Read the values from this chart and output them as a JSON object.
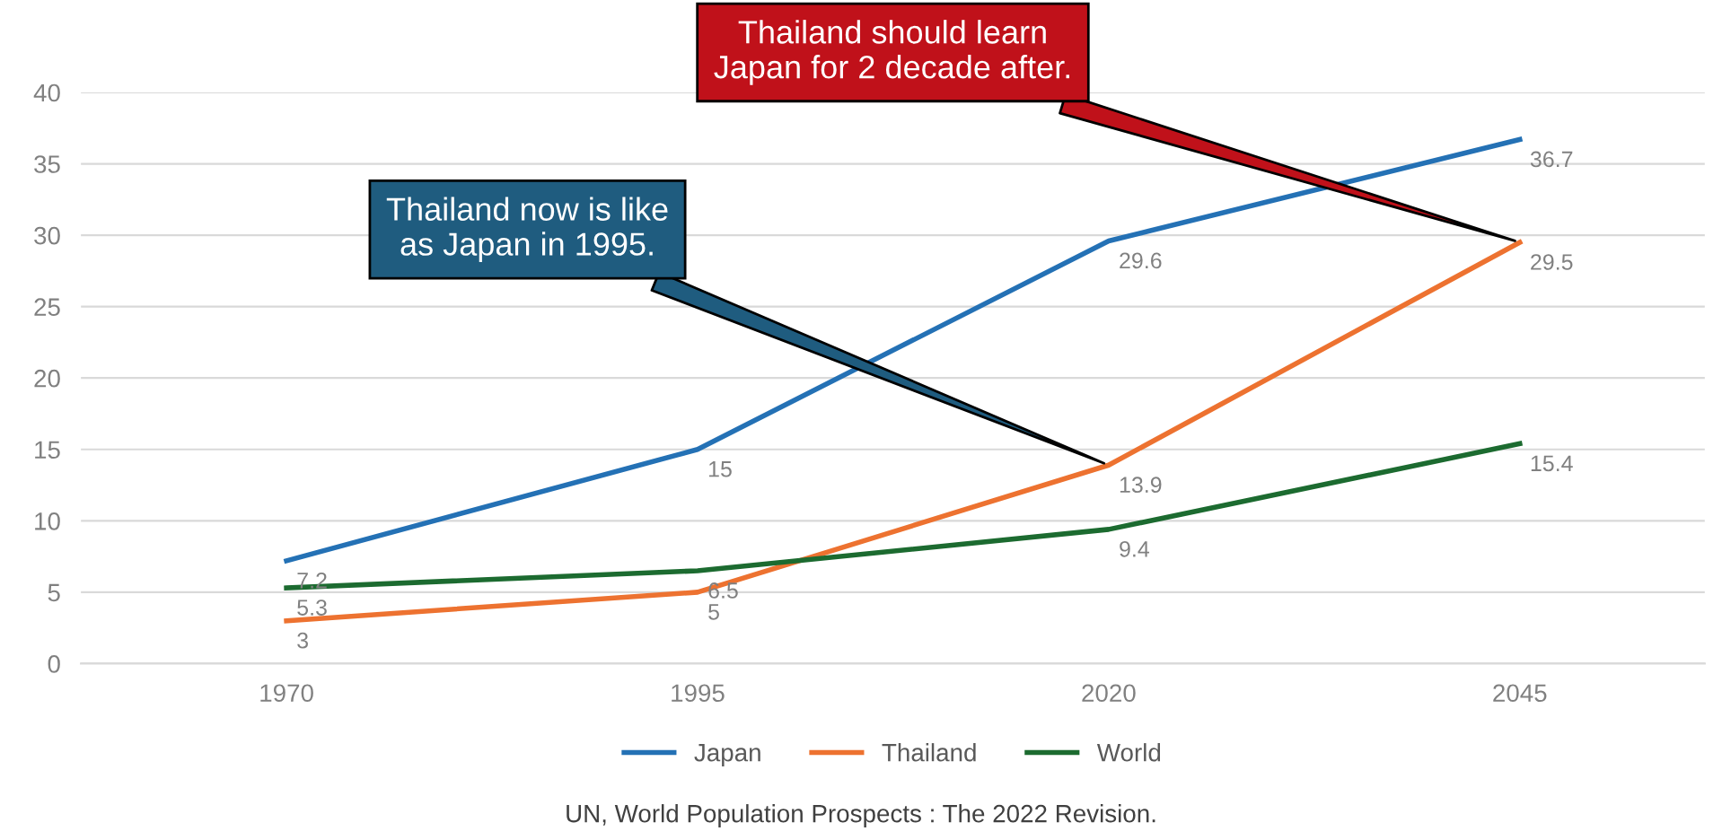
{
  "chart_data": {
    "type": "line",
    "categories": [
      "1970",
      "1995",
      "2020",
      "2045"
    ],
    "series": [
      {
        "name": "Japan",
        "color": "#2471b5",
        "values": [
          7.2,
          15,
          29.6,
          36.7
        ]
      },
      {
        "name": "Thailand",
        "color": "#ed7230",
        "values": [
          3,
          5,
          13.9,
          29.5
        ]
      },
      {
        "name": "World",
        "color": "#1c6b30",
        "values": [
          5.3,
          6.5,
          9.4,
          15.4
        ]
      }
    ],
    "ylim": [
      0,
      40
    ],
    "yticks": [
      0,
      5,
      10,
      15,
      20,
      25,
      30,
      35,
      40
    ],
    "grid": "y",
    "legend": "bottom",
    "data_labels": true,
    "marker": "none",
    "line_style": "solid",
    "annotations": [
      {
        "text": "Thailand now is like\nas Japan in 1995.",
        "x": "2020",
        "y": 13.9
      },
      {
        "text": "Thailand should learn\nJapan for 2 decade after.",
        "x": "2045",
        "y": 29.5
      },
      "UN, World Population Prospects : The 2022 Revision."
    ]
  }
}
